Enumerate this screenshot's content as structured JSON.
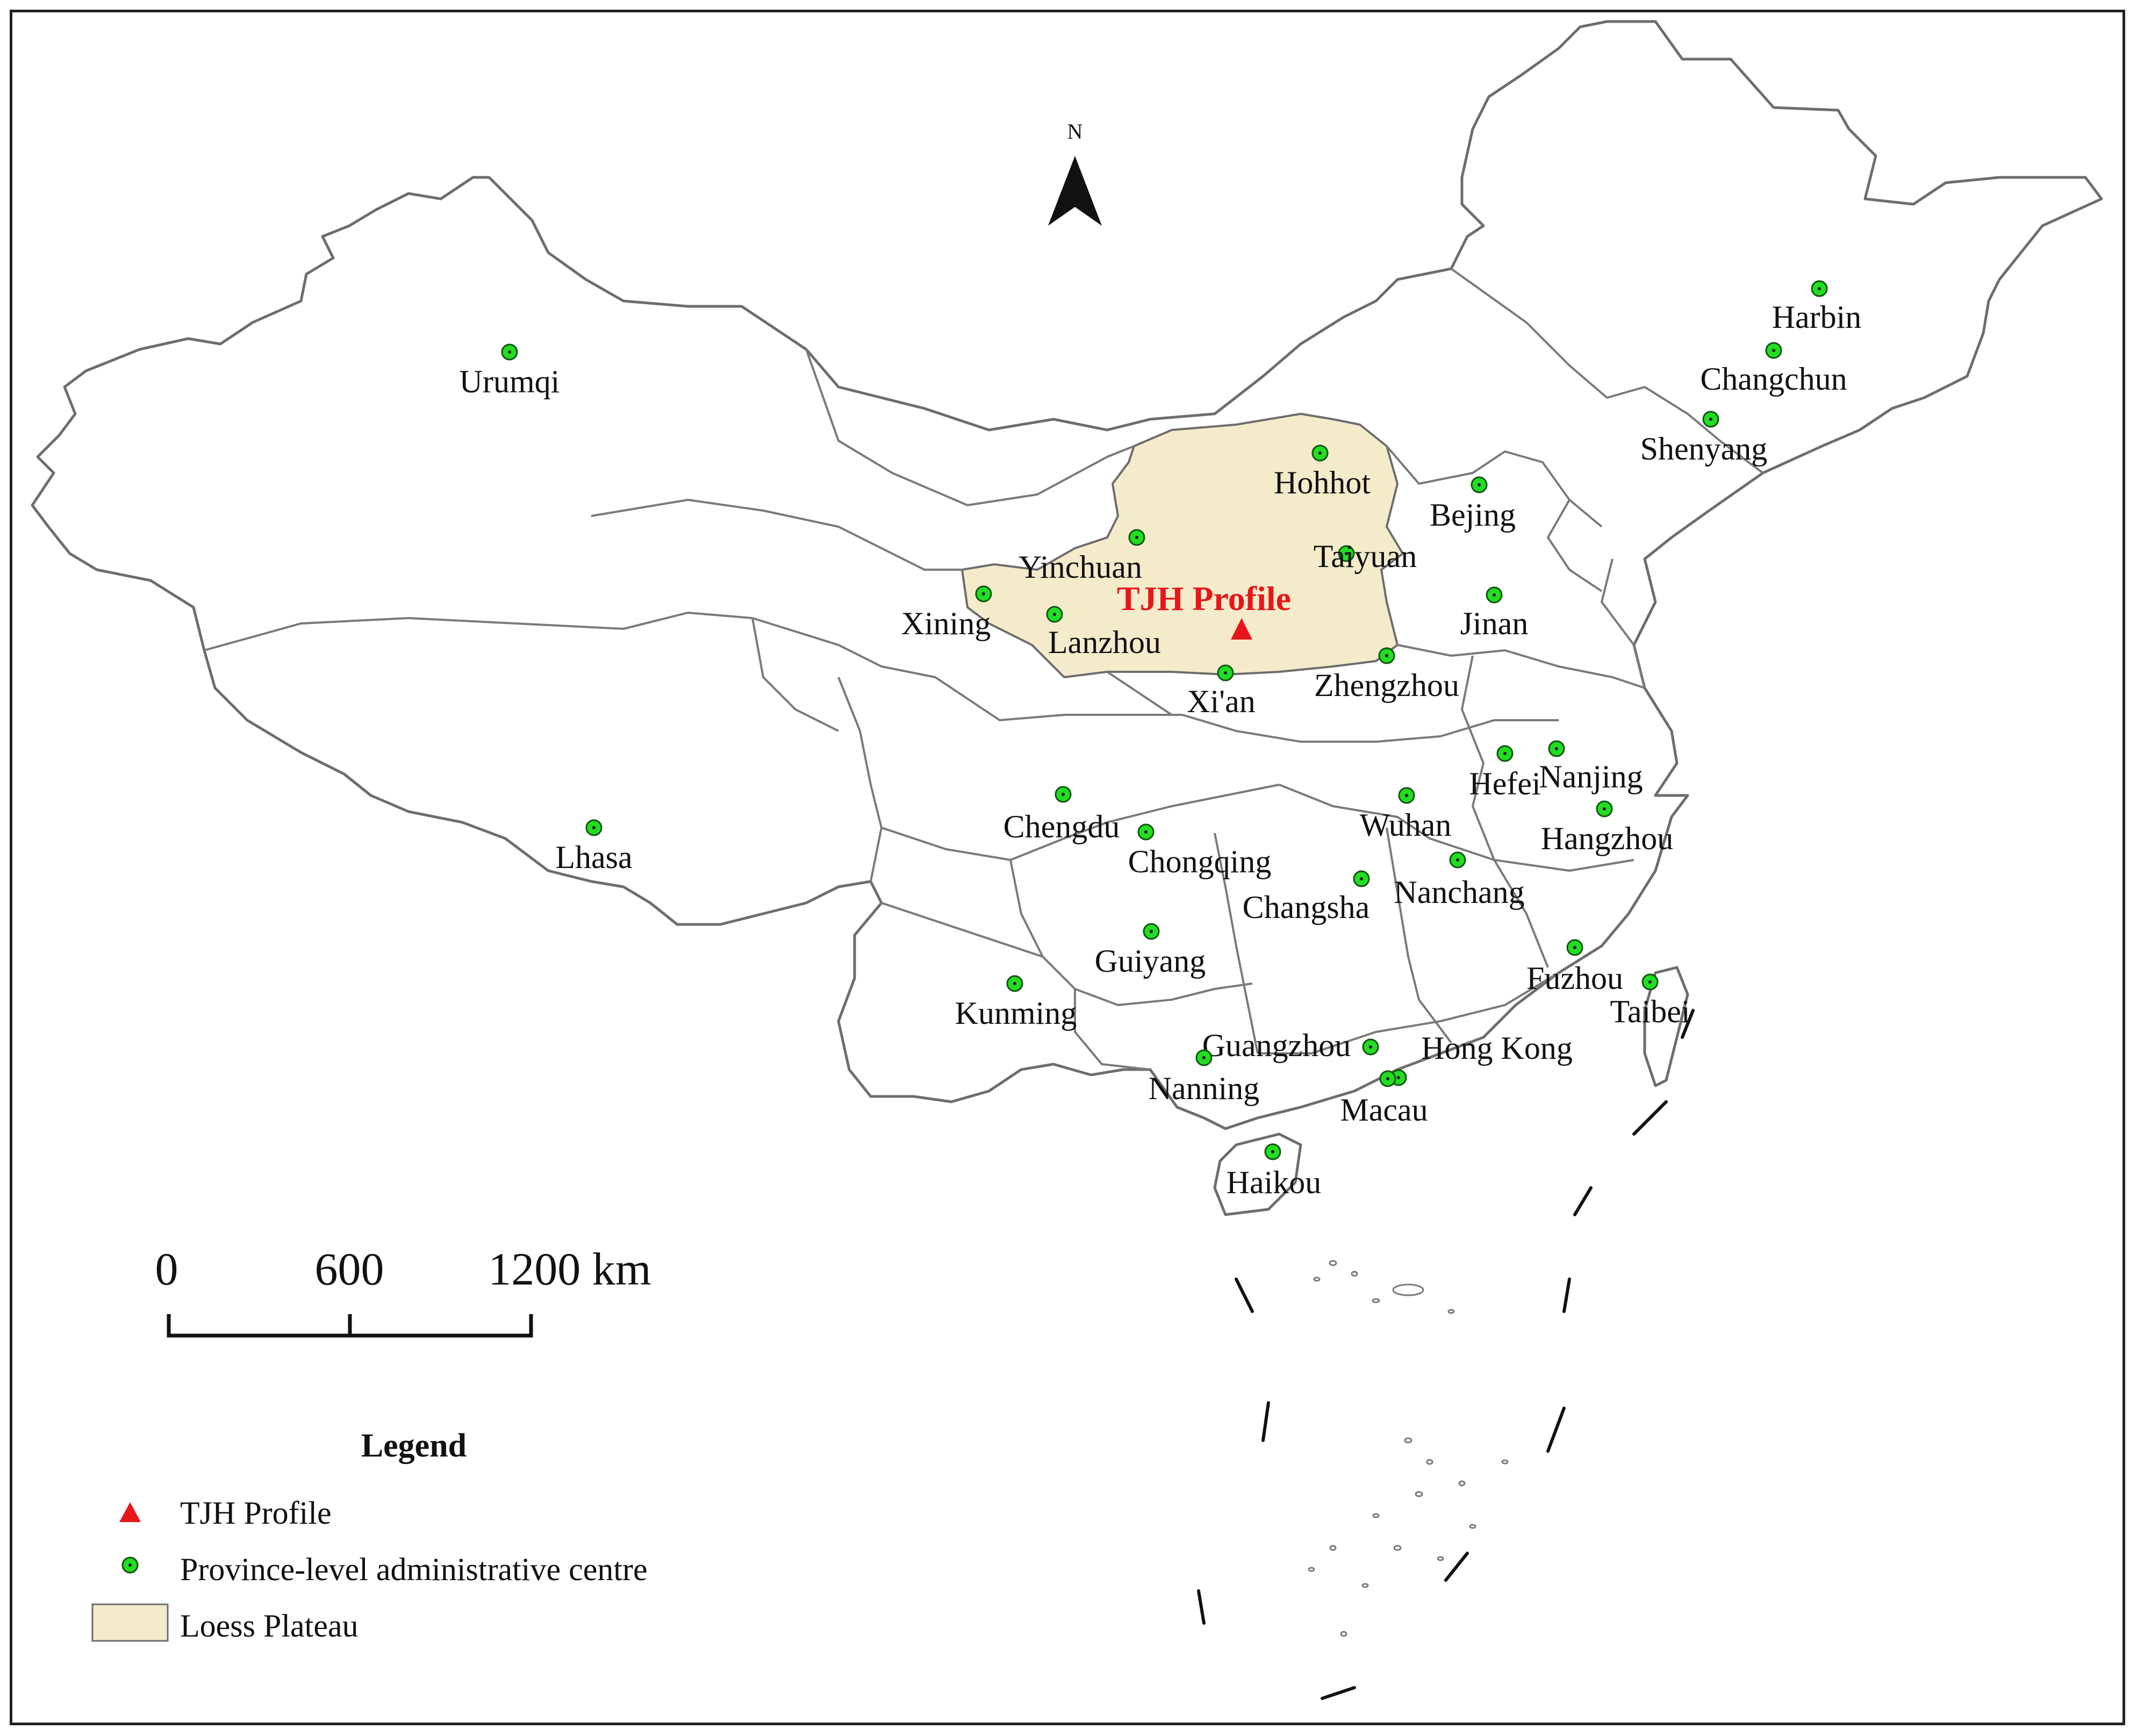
{
  "map": {
    "profile_label": "TJH Profile",
    "north_label": "N",
    "colors": {
      "loess": "#f4ebcb",
      "city_fill": "#22dd22",
      "profile": "#e8161b",
      "border": "#7a7a7a"
    },
    "cities": [
      {
        "name": "Urumqi"
      },
      {
        "name": "Harbin"
      },
      {
        "name": "Changchun"
      },
      {
        "name": "Shenyang"
      },
      {
        "name": "Hohhot"
      },
      {
        "name": "Bejing"
      },
      {
        "name": "Yinchuan"
      },
      {
        "name": "Taiyuan"
      },
      {
        "name": "Xining"
      },
      {
        "name": "Lanzhou"
      },
      {
        "name": "Jinan"
      },
      {
        "name": "Xi'an"
      },
      {
        "name": "Zhengzhou"
      },
      {
        "name": "Hefei"
      },
      {
        "name": "Nanjing"
      },
      {
        "name": "Lhasa"
      },
      {
        "name": "Chengdu"
      },
      {
        "name": "Wuhan"
      },
      {
        "name": "Hangzhou"
      },
      {
        "name": "Chongqing"
      },
      {
        "name": "Changsha"
      },
      {
        "name": "Nanchang"
      },
      {
        "name": "Guiyang"
      },
      {
        "name": "Fuzhou"
      },
      {
        "name": "Kunming"
      },
      {
        "name": "Taibei"
      },
      {
        "name": "Guangzhou"
      },
      {
        "name": "Hong Kong"
      },
      {
        "name": "Nanning"
      },
      {
        "name": "Macau"
      },
      {
        "name": "Haikou"
      }
    ]
  },
  "scale_bar": {
    "labels": [
      "0",
      "600",
      "1200 km"
    ]
  },
  "legend": {
    "title": "Legend",
    "items": [
      {
        "label": "TJH Profile",
        "symbol": "red-triangle"
      },
      {
        "label": "Province-level administrative centre",
        "symbol": "green-dot"
      },
      {
        "label": "Loess Plateau",
        "symbol": "beige-box"
      }
    ]
  }
}
